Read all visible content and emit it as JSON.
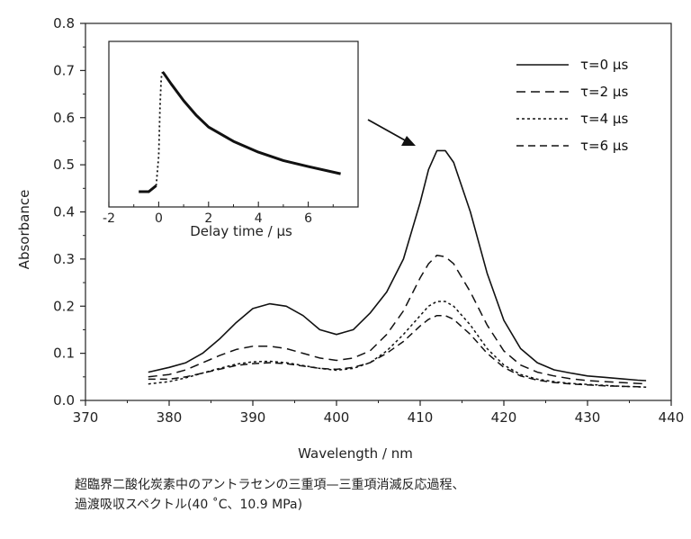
{
  "chart_data": [
    {
      "type": "line",
      "title": "",
      "xlabel": "Wavelength / nm",
      "ylabel": "Absorbance",
      "xlim": [
        370,
        440
      ],
      "ylim": [
        0.0,
        0.8
      ],
      "xticks": [
        "370",
        "380",
        "390",
        "400",
        "410",
        "420",
        "430",
        "440"
      ],
      "yticks": [
        "0.0",
        "0.1",
        "0.2",
        "0.3",
        "0.4",
        "0.5",
        "0.6",
        "0.7",
        "0.8"
      ],
      "legend_position": "top-right",
      "x": [
        377.5,
        380,
        382,
        384,
        386,
        388,
        390,
        392,
        394,
        396,
        398,
        400,
        402,
        404,
        406,
        408,
        410,
        411,
        412,
        413,
        414,
        416,
        418,
        420,
        422,
        424,
        426,
        428,
        430,
        432,
        434,
        436,
        437
      ],
      "series": [
        {
          "name": "τ=0 μs",
          "style": "solid",
          "values": [
            0.06,
            0.07,
            0.08,
            0.1,
            0.13,
            0.165,
            0.195,
            0.205,
            0.2,
            0.18,
            0.15,
            0.14,
            0.15,
            0.185,
            0.23,
            0.3,
            0.42,
            0.49,
            0.53,
            0.53,
            0.505,
            0.4,
            0.27,
            0.17,
            0.11,
            0.08,
            0.065,
            0.058,
            0.052,
            0.049,
            0.046,
            0.043,
            0.042
          ]
        },
        {
          "name": "τ=2 μs",
          "style": "dashed",
          "values": [
            0.05,
            0.055,
            0.065,
            0.08,
            0.095,
            0.108,
            0.115,
            0.115,
            0.11,
            0.1,
            0.09,
            0.085,
            0.09,
            0.105,
            0.14,
            0.19,
            0.26,
            0.29,
            0.308,
            0.305,
            0.29,
            0.23,
            0.16,
            0.105,
            0.075,
            0.06,
            0.052,
            0.046,
            0.042,
            0.04,
            0.038,
            0.036,
            0.035
          ]
        },
        {
          "name": "τ=4 μs",
          "style": "dotted",
          "values": [
            0.035,
            0.04,
            0.048,
            0.058,
            0.068,
            0.077,
            0.082,
            0.083,
            0.08,
            0.074,
            0.068,
            0.064,
            0.068,
            0.08,
            0.105,
            0.14,
            0.18,
            0.2,
            0.21,
            0.21,
            0.2,
            0.16,
            0.11,
            0.075,
            0.055,
            0.045,
            0.04,
            0.036,
            0.034,
            0.032,
            0.03,
            0.029,
            0.028
          ]
        },
        {
          "name": "τ=6 μs",
          "style": "long-dashed",
          "values": [
            0.045,
            0.045,
            0.05,
            0.058,
            0.066,
            0.074,
            0.078,
            0.08,
            0.078,
            0.073,
            0.068,
            0.066,
            0.07,
            0.08,
            0.1,
            0.125,
            0.158,
            0.172,
            0.18,
            0.18,
            0.172,
            0.14,
            0.1,
            0.07,
            0.052,
            0.043,
            0.038,
            0.035,
            0.033,
            0.031,
            0.03,
            0.029,
            0.028
          ]
        }
      ],
      "annotation": "arrow pointing to τ=0 μs peak near 412 nm"
    },
    {
      "type": "line",
      "title": "",
      "xlabel": "Delay time / μs",
      "ylabel": "",
      "xlim": [
        -2,
        8
      ],
      "xticks": [
        "-2",
        "0",
        "2",
        "4",
        "6"
      ],
      "series": [
        {
          "name": "",
          "x": [
            -0.8,
            -0.4,
            -0.1,
            0.0,
            0.05,
            0.1,
            0.15,
            0.2,
            0.3,
            0.5,
            1.0,
            1.5,
            2.0,
            3.0,
            4.0,
            5.0,
            6.0,
            7.3
          ],
          "values": [
            0.0,
            0.0,
            0.05,
            0.3,
            0.7,
            0.95,
            1.0,
            0.99,
            0.96,
            0.9,
            0.76,
            0.64,
            0.54,
            0.42,
            0.33,
            0.26,
            0.21,
            0.15
          ]
        }
      ]
    }
  ],
  "caption": {
    "line1": "超臨界二酸化炭素中のアントラセンの三重項—三重項消滅反応過程、",
    "line2": "過渡吸収スペクトル(40 ˚C、10.9 MPa)"
  }
}
